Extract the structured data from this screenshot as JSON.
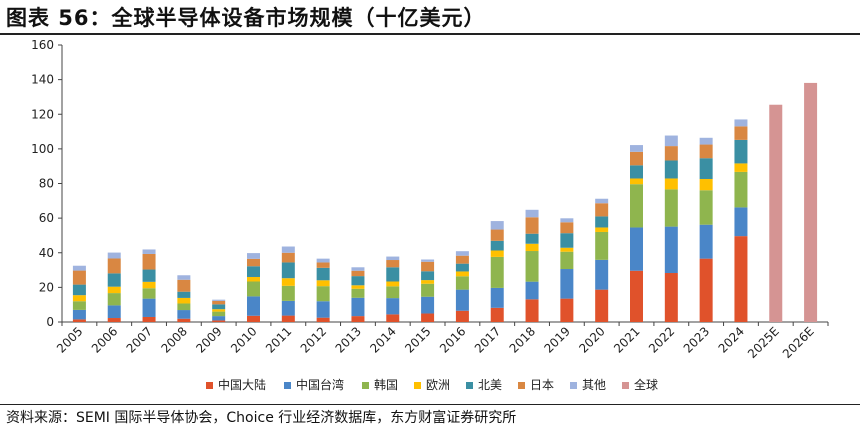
{
  "title": "图表 56：全球半导体设备市场规模（十亿美元）",
  "source": "资料来源：SEMI 国际半导体协会，Choice 行业经济数据库，东方财富证券研究所",
  "chart_data": {
    "type": "bar",
    "stacked": true,
    "title": "图表 56：全球半导体设备市场规模（十亿美元）",
    "xlabel": "",
    "ylabel": "",
    "ylim": [
      0,
      160
    ],
    "yticks": [
      0,
      20,
      40,
      60,
      80,
      100,
      120,
      140,
      160
    ],
    "grid": false,
    "legend_position": "bottom",
    "categories": [
      "2005",
      "2006",
      "2007",
      "2008",
      "2009",
      "2010",
      "2011",
      "2012",
      "2013",
      "2014",
      "2015",
      "2016",
      "2017",
      "2018",
      "2019",
      "2020",
      "2021",
      "2022",
      "2023",
      "2024",
      "2025E",
      "2026E"
    ],
    "series": [
      {
        "name": "中国大陆",
        "color": "#E0522B",
        "values": [
          1.5,
          2.3,
          2.9,
          1.9,
          0.9,
          3.6,
          3.7,
          2.5,
          3.4,
          4.4,
          4.9,
          6.5,
          8.2,
          13.1,
          13.5,
          18.7,
          29.6,
          28.3,
          36.6,
          49.6,
          null,
          null
        ]
      },
      {
        "name": "中国台湾",
        "color": "#4A86C8",
        "values": [
          5.5,
          7.3,
          10.6,
          5.0,
          2.5,
          11.2,
          8.5,
          9.5,
          10.6,
          9.4,
          9.7,
          12.2,
          11.5,
          10.2,
          17.1,
          17.2,
          25.0,
          26.8,
          19.6,
          16.6,
          null,
          null
        ]
      },
      {
        "name": "韩国",
        "color": "#8FB54E",
        "values": [
          5.0,
          7.1,
          6.0,
          3.8,
          2.6,
          8.6,
          8.7,
          8.7,
          5.2,
          6.8,
          7.5,
          7.7,
          17.9,
          17.7,
          10.0,
          16.1,
          25.0,
          21.5,
          19.9,
          20.5,
          null,
          null
        ]
      },
      {
        "name": "欧洲",
        "color": "#FFC000",
        "values": [
          3.5,
          3.7,
          3.7,
          3.2,
          1.4,
          2.6,
          4.4,
          3.4,
          2.0,
          2.8,
          2.1,
          2.8,
          3.7,
          4.2,
          2.3,
          2.6,
          3.3,
          6.3,
          6.5,
          4.9,
          null,
          null
        ]
      },
      {
        "name": "北美",
        "color": "#3A8FA3",
        "values": [
          6.1,
          7.7,
          7.1,
          3.6,
          2.8,
          6.2,
          9.1,
          7.2,
          5.3,
          8.2,
          5.1,
          4.5,
          5.6,
          5.8,
          8.4,
          6.4,
          7.6,
          10.4,
          12.0,
          13.6,
          null,
          null
        ]
      },
      {
        "name": "日本",
        "color": "#D98742",
        "values": [
          8.1,
          8.6,
          9.0,
          6.9,
          2.0,
          4.3,
          5.6,
          3.1,
          3.1,
          4.2,
          5.5,
          4.6,
          6.5,
          9.5,
          6.3,
          7.6,
          7.8,
          8.3,
          7.9,
          7.8,
          null,
          null
        ]
      },
      {
        "name": "其他",
        "color": "#9FB3DF",
        "values": [
          2.8,
          3.4,
          2.6,
          2.6,
          0.7,
          3.3,
          3.6,
          2.2,
          2.0,
          2.0,
          1.3,
          2.6,
          4.9,
          4.3,
          2.3,
          2.6,
          3.9,
          6.1,
          3.9,
          4.0,
          null,
          null
        ]
      },
      {
        "name": "全球",
        "color": "#D59493",
        "values": [
          null,
          null,
          null,
          null,
          null,
          null,
          null,
          null,
          null,
          null,
          null,
          null,
          null,
          null,
          null,
          null,
          null,
          null,
          null,
          null,
          125.5,
          138.1
        ]
      }
    ]
  }
}
